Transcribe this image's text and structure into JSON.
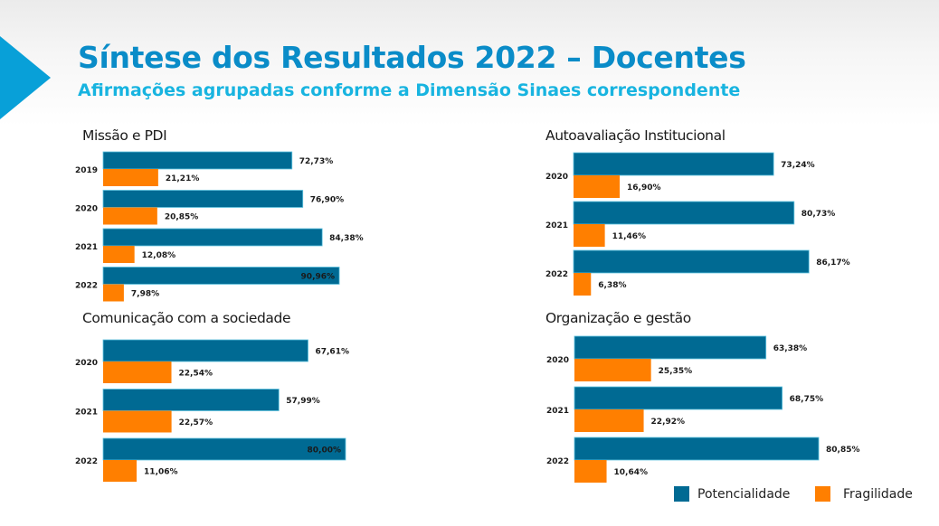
{
  "header": {
    "title": "Síntese dos Resultados 2022 – Docentes",
    "subtitle": "Afirmações agrupadas conforme a Dimensão Sinaes correspondente"
  },
  "colors": {
    "potencialidade": "#006a93",
    "fragilidade": "#ff7f00",
    "title": "#0a8cc8",
    "subtitle": "#18b4e0"
  },
  "legend": {
    "items": [
      {
        "label": "Potencialidade",
        "color": "#006a93"
      },
      {
        "label": "Fragilidade",
        "color": "#ff7f00"
      }
    ]
  },
  "chart_data": [
    {
      "type": "bar",
      "orientation": "horizontal",
      "title": "Missão e PDI",
      "categories": [
        "2019",
        "2020",
        "2021",
        "2022"
      ],
      "series": [
        {
          "name": "Potencialidade",
          "values": [
            72.73,
            76.9,
            84.38,
            90.96
          ],
          "labels": [
            "72,73%",
            "76,90%",
            "84,38%",
            "90,96%"
          ]
        },
        {
          "name": "Fragilidade",
          "values": [
            21.21,
            20.85,
            12.08,
            7.98
          ],
          "labels": [
            "21,21%",
            "20,85%",
            "12,08%",
            "7,98%"
          ]
        }
      ],
      "xlim": [
        0,
        100
      ]
    },
    {
      "type": "bar",
      "orientation": "horizontal",
      "title": "Autoavaliação Institucional",
      "categories": [
        "2020",
        "2021",
        "2022"
      ],
      "series": [
        {
          "name": "Potencialidade",
          "values": [
            73.24,
            80.73,
            86.17
          ],
          "labels": [
            "73,24%",
            "80,73%",
            "86,17%"
          ]
        },
        {
          "name": "Fragilidade",
          "values": [
            16.9,
            11.46,
            6.38
          ],
          "labels": [
            "16,90%",
            "11,46%",
            "6,38%"
          ]
        }
      ],
      "xlim": [
        0,
        100
      ]
    },
    {
      "type": "bar",
      "orientation": "horizontal",
      "title": "Comunicação com a sociedade",
      "categories": [
        "2020",
        "2021",
        "2022"
      ],
      "series": [
        {
          "name": "Potencialidade",
          "values": [
            67.61,
            57.99,
            80.0
          ],
          "labels": [
            "67,61%",
            "57,99%",
            "80,00%"
          ]
        },
        {
          "name": "Fragilidade",
          "values": [
            22.54,
            22.57,
            11.06
          ],
          "labels": [
            "22,54%",
            "22,57%",
            "11,06%"
          ]
        }
      ],
      "xlim": [
        0,
        100
      ]
    },
    {
      "type": "bar",
      "orientation": "horizontal",
      "title": "Organização e gestão",
      "categories": [
        "2020",
        "2021",
        "2022"
      ],
      "series": [
        {
          "name": "Potencialidade",
          "values": [
            63.38,
            68.75,
            80.85
          ],
          "labels": [
            "63,38%",
            "68,75%",
            "80,85%"
          ]
        },
        {
          "name": "Fragilidade",
          "values": [
            25.35,
            22.92,
            10.64
          ],
          "labels": [
            "25,35%",
            "22,92%",
            "10,64%"
          ]
        }
      ],
      "xlim": [
        0,
        100
      ]
    }
  ]
}
